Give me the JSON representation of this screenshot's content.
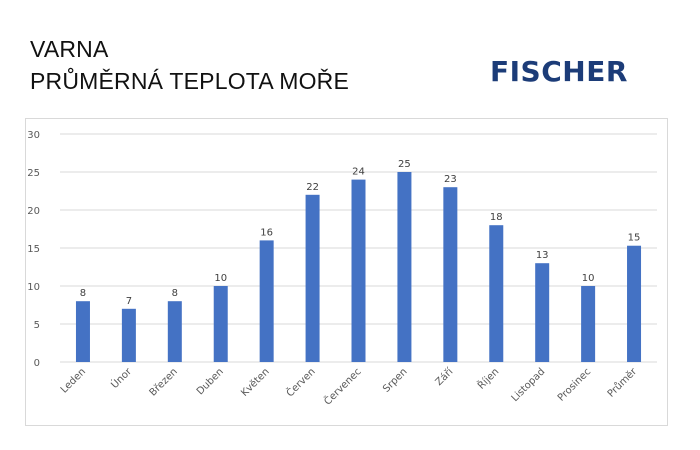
{
  "header": {
    "title_line_1": "VARNA",
    "title_line_2": "PRŮMĚRNÁ TEPLOTA MOŘE"
  },
  "brand": {
    "name": "FISCHER",
    "color": "#1c3c78"
  },
  "chart_data": {
    "type": "bar",
    "title": "",
    "xlabel": "",
    "ylabel": "",
    "categories": [
      "Leden",
      "Únor",
      "Březen",
      "Duben",
      "Květen",
      "Červen",
      "Červenec",
      "Srpen",
      "Září",
      "Říjen",
      "Listopad",
      "Prosinec",
      "Průměr"
    ],
    "values": [
      8,
      7,
      8,
      10,
      16,
      22,
      24,
      25,
      23,
      18,
      13,
      10,
      15.3
    ],
    "data_labels": [
      "8",
      "7",
      "8",
      "10",
      "16",
      "22",
      "24",
      "25",
      "23",
      "18",
      "13",
      "10",
      "15"
    ],
    "ylim": [
      0,
      30
    ],
    "yticks": [
      0,
      5,
      10,
      15,
      20,
      25,
      30
    ],
    "grid": true,
    "legend": "none",
    "bar_color": "#4472c4",
    "grid_color": "#d9d9d9"
  }
}
